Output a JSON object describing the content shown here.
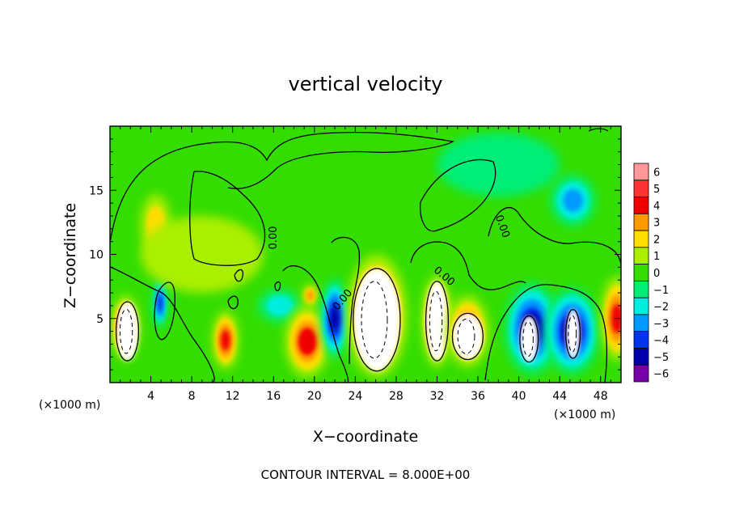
{
  "chart_data": {
    "type": "heatmap",
    "title": "vertical velocity",
    "xlabel": "X−coordinate",
    "ylabel": "Z−coordinate",
    "x_unit_label_left": "(×1000 m)",
    "x_unit_label_right": "(×1000 m)",
    "footnote": "CONTOUR INTERVAL = 8.000E+00",
    "xlim": [
      0,
      50
    ],
    "ylim": [
      0,
      20
    ],
    "x_ticks": [
      4,
      8,
      12,
      16,
      20,
      24,
      28,
      32,
      36,
      40,
      44,
      48
    ],
    "x_tick_labels": [
      "4",
      "8",
      "12",
      "16",
      "20",
      "24",
      "28",
      "32",
      "36",
      "40",
      "44",
      "48"
    ],
    "y_ticks": [
      5,
      10,
      15
    ],
    "y_tick_labels": [
      "5",
      "10",
      "15"
    ],
    "colorbar": {
      "levels": [
        6,
        5,
        4,
        3,
        2,
        1,
        0,
        -1,
        -2,
        -3,
        -4,
        -5,
        -6
      ],
      "labels": [
        "6",
        "5",
        "4",
        "3",
        "2",
        "1",
        "0",
        "−1",
        "−2",
        "−3",
        "−4",
        "−5",
        "−6"
      ],
      "colors": [
        "#ff9999",
        "#ff3333",
        "#ee0000",
        "#ff9900",
        "#ffdd00",
        "#aaee00",
        "#33dd00",
        "#00ee77",
        "#00eedd",
        "#0099ff",
        "#0033ee",
        "#0000aa",
        "#7700aa"
      ]
    },
    "contour_labels": [
      {
        "text": "0.00",
        "x": 16.3,
        "z": 11.3,
        "angle": -90
      },
      {
        "text": "0.00",
        "x": 23.0,
        "z": 6.3,
        "angle": -50
      },
      {
        "text": "0.00",
        "x": 32.5,
        "z": 8.1,
        "angle": 40
      },
      {
        "text": "0.00",
        "x": 38.1,
        "z": 12.1,
        "angle": 70
      }
    ],
    "features": [
      {
        "x": 1.5,
        "z": 4.3,
        "value": 4.6,
        "rx": 1.4,
        "rz": 2.5
      },
      {
        "x": 1.7,
        "z": 4.0,
        "value": 15,
        "rx": 1.1,
        "rz": 2.3
      },
      {
        "x": 4.9,
        "z": 6.2,
        "value": -3.6,
        "rx": 0.7,
        "rz": 2.0
      },
      {
        "x": 4.5,
        "z": 12.3,
        "value": 1.6,
        "rx": 1.5,
        "rz": 2.4
      },
      {
        "x": 11.3,
        "z": 3.3,
        "value": 3.8,
        "rx": 1.3,
        "rz": 2.3
      },
      {
        "x": 16.6,
        "z": 6.0,
        "value": -2.4,
        "rx": 2.1,
        "rz": 1.3
      },
      {
        "x": 19.3,
        "z": 3.2,
        "value": 4.3,
        "rx": 2.2,
        "rz": 2.8
      },
      {
        "x": 19.6,
        "z": 6.8,
        "value": 2.8,
        "rx": 0.8,
        "rz": 0.9
      },
      {
        "x": 22.0,
        "z": 5.0,
        "value": -4.9,
        "rx": 1.4,
        "rz": 3.1
      },
      {
        "x": 26.1,
        "z": 5.2,
        "value": 5.2,
        "rx": 3.0,
        "rz": 4.8
      },
      {
        "x": 26.1,
        "z": 4.9,
        "value": 16,
        "rx": 2.3,
        "rz": 4.0
      },
      {
        "x": 32.0,
        "z": 4.8,
        "value": 4.8,
        "rx": 1.5,
        "rz": 3.6
      },
      {
        "x": 32.0,
        "z": 4.8,
        "value": 15,
        "rx": 1.1,
        "rz": 3.1
      },
      {
        "x": 35.0,
        "z": 4.0,
        "value": 4.4,
        "rx": 2.1,
        "rz": 2.8
      },
      {
        "x": 35.0,
        "z": 3.6,
        "value": 12,
        "rx": 1.5,
        "rz": 1.8
      },
      {
        "x": 41.3,
        "z": 4.2,
        "value": -5.4,
        "rx": 2.7,
        "rz": 3.6
      },
      {
        "x": 41.0,
        "z": 3.4,
        "value": 15,
        "rx": 0.9,
        "rz": 1.8
      },
      {
        "x": 45.2,
        "z": 4.0,
        "value": -5.2,
        "rx": 2.7,
        "rz": 3.4
      },
      {
        "x": 45.3,
        "z": 3.8,
        "value": 12,
        "rx": 0.7,
        "rz": 1.9
      },
      {
        "x": 49.6,
        "z": 5.0,
        "value": 3.6,
        "rx": 1.6,
        "rz": 3.3
      },
      {
        "x": 45.3,
        "z": 14.2,
        "value": -2.8,
        "rx": 2.2,
        "rz": 2.0
      },
      {
        "x": 9.0,
        "z": 10.0,
        "value": 0.6,
        "rx": 6.0,
        "rz": 3.0
      },
      {
        "x": 38.0,
        "z": 17.0,
        "value": -0.6,
        "rx": 6.0,
        "rz": 2.5
      }
    ]
  }
}
